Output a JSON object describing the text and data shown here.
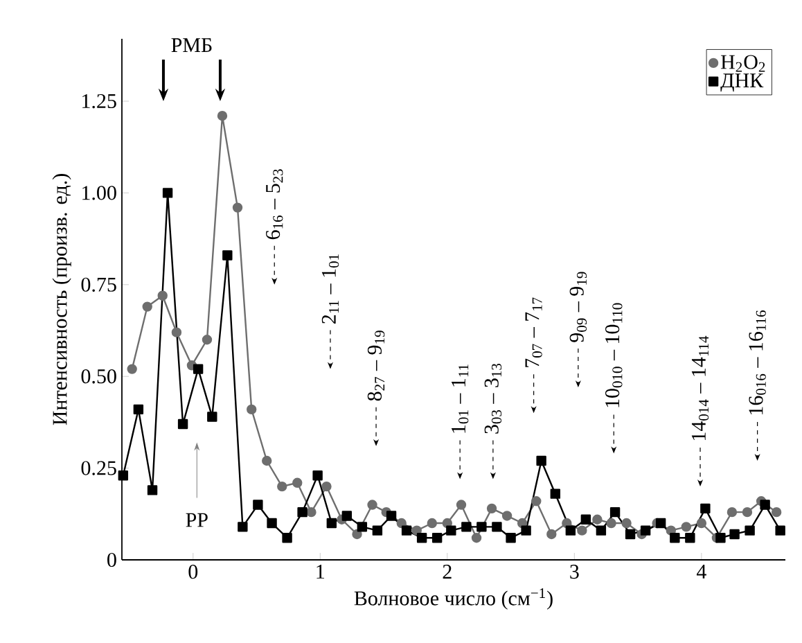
{
  "chart_data": {
    "type": "line",
    "xlabel": "Волновое число (см$^{−1}$)",
    "ylabel": "Интенсивность (произв. ед.)",
    "xlim": [
      -0.56,
      4.66
    ],
    "ylim": [
      0,
      1.42
    ],
    "xticks": [
      0,
      1,
      2,
      3,
      4
    ],
    "yticks": [
      0,
      0.25,
      {
        "value": 0.5,
        "label": "0.50"
      },
      0.75,
      {
        "value": 1.0,
        "label": "1.00"
      },
      1.25
    ],
    "legend": "top right",
    "grid": false,
    "series": [
      {
        "name": "H$_{2}$O$_{2}$",
        "color": "#6e6e6e",
        "marker": "circle",
        "x": [
          -0.48,
          -0.36,
          -0.24,
          -0.13,
          -0.01,
          0.11,
          0.23,
          0.35,
          0.46,
          0.58,
          0.7,
          0.82,
          0.93,
          1.05,
          1.17,
          1.29,
          1.41,
          1.52,
          1.64,
          1.76,
          1.88,
          2.0,
          2.11,
          2.23,
          2.35,
          2.47,
          2.59,
          2.7,
          2.82,
          2.94,
          3.06,
          3.18,
          3.29,
          3.41,
          3.53,
          3.65,
          3.76,
          3.88,
          4.0,
          4.12,
          4.24,
          4.36,
          4.47,
          4.59
        ],
        "values": [
          0.52,
          0.69,
          0.72,
          0.62,
          0.53,
          0.6,
          1.21,
          0.96,
          0.41,
          0.27,
          0.2,
          0.21,
          0.13,
          0.2,
          0.11,
          0.07,
          0.15,
          0.13,
          0.1,
          0.08,
          0.1,
          0.1,
          0.15,
          0.06,
          0.14,
          0.12,
          0.1,
          0.16,
          0.07,
          0.1,
          0.08,
          0.11,
          0.1,
          0.1,
          0.07,
          0.1,
          0.08,
          0.09,
          0.1,
          0.06,
          0.13,
          0.13,
          0.16,
          0.13
        ]
      },
      {
        "name": "ДНК",
        "color": "#000000",
        "marker": "square",
        "x": [
          -0.55,
          -0.43,
          -0.32,
          -0.2,
          -0.08,
          0.04,
          0.15,
          0.27,
          0.39,
          0.51,
          0.62,
          0.74,
          0.86,
          0.98,
          1.09,
          1.21,
          1.33,
          1.45,
          1.56,
          1.68,
          1.8,
          1.92,
          2.03,
          2.15,
          2.27,
          2.39,
          2.5,
          2.62,
          2.74,
          2.85,
          2.97,
          3.09,
          3.21,
          3.32,
          3.44,
          3.56,
          3.68,
          3.79,
          3.91,
          4.03,
          4.15,
          4.26,
          4.38,
          4.5,
          4.62
        ],
        "values": [
          0.23,
          0.41,
          0.19,
          1.0,
          0.37,
          0.52,
          0.39,
          0.83,
          0.09,
          0.15,
          0.1,
          0.06,
          0.13,
          0.23,
          0.1,
          0.12,
          0.09,
          0.08,
          0.12,
          0.08,
          0.06,
          0.06,
          0.08,
          0.09,
          0.09,
          0.09,
          0.06,
          0.08,
          0.27,
          0.18,
          0.08,
          0.11,
          0.08,
          0.13,
          0.07,
          0.08,
          0.1,
          0.06,
          0.06,
          0.14,
          0.06,
          0.07,
          0.08,
          0.15,
          0.08
        ]
      }
    ],
    "annotations": [
      "РМБ",
      "РР",
      "6$_{16}$ – 5$_{23}$",
      "2$_{11}$ – 1$_{01}$",
      "8$_{27}$ – 9$_{19}$",
      "1$_{01}$ – 1$_{11}$",
      "3$_{03}$ – 3$_{13}$",
      "7$_{07}$ – 7$_{17}$",
      "9$_{09}$ – 9$_{19}$",
      "10$_{010}$ – 10$_{110}$",
      "14$_{014}$ – 14$_{114}$",
      "16$_{016}$ – 16$_{116}$"
    ]
  }
}
